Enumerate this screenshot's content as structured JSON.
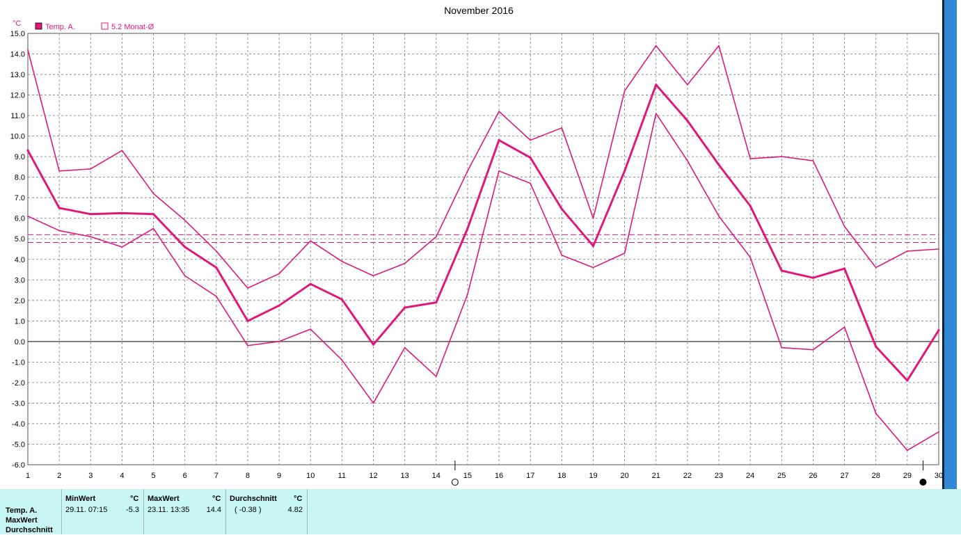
{
  "chart_data": {
    "type": "line",
    "title": "November 2016",
    "ylabel": "°C",
    "ylim": [
      -6.0,
      15.0
    ],
    "ytick_step": 1.0,
    "y_ticks": [
      "15.0",
      "14.0",
      "13.0",
      "12.0",
      "11.0",
      "10.0",
      "9.0",
      "8.0",
      "7.0",
      "6.0",
      "5.0",
      "4.0",
      "3.0",
      "2.0",
      "1.0",
      "0.0",
      "-1.0",
      "-2.0",
      "-3.0",
      "-4.0",
      "-5.0",
      "-6.0"
    ],
    "x": [
      1,
      2,
      3,
      4,
      5,
      6,
      7,
      8,
      9,
      10,
      11,
      12,
      13,
      14,
      15,
      16,
      17,
      18,
      19,
      20,
      21,
      22,
      23,
      24,
      25,
      26,
      27,
      28,
      29,
      30
    ],
    "x_ticks": [
      "1",
      "2",
      "3",
      "4",
      "5",
      "6",
      "7",
      "8",
      "9",
      "10",
      "11",
      "12",
      "13",
      "14",
      "15",
      "16",
      "17",
      "18",
      "19",
      "20",
      "21",
      "22",
      "23",
      "24",
      "25",
      "26",
      "27",
      "28",
      "29",
      "30"
    ],
    "grid": true,
    "legend_placement": "top-left",
    "legend": [
      {
        "label": "Temp. A.",
        "filled": true
      },
      {
        "label": "5.2 Monat-Ø",
        "filled": false
      }
    ],
    "color": "#e0187a",
    "series": [
      {
        "name": "Temp. A.",
        "role": "mean",
        "values": [
          9.3,
          6.5,
          6.2,
          6.25,
          6.2,
          4.6,
          3.6,
          1.0,
          1.75,
          2.8,
          2.05,
          -0.15,
          1.65,
          1.9,
          5.5,
          9.8,
          8.95,
          6.45,
          4.65,
          8.3,
          12.5,
          10.75,
          8.6,
          6.6,
          3.45,
          3.1,
          3.55,
          -0.25,
          -1.9,
          0.55
        ]
      },
      {
        "role": "max",
        "values": [
          14.2,
          8.3,
          8.4,
          9.3,
          7.2,
          5.9,
          4.4,
          2.6,
          3.3,
          4.9,
          3.9,
          3.2,
          3.8,
          5.1,
          8.3,
          11.2,
          9.8,
          10.4,
          6.0,
          12.2,
          14.4,
          12.5,
          14.4,
          8.9,
          9.0,
          8.8,
          5.6,
          3.6,
          4.4,
          4.5
        ]
      },
      {
        "role": "min",
        "values": [
          6.1,
          5.4,
          5.1,
          4.6,
          5.5,
          3.2,
          2.2,
          -0.2,
          0.0,
          0.6,
          -0.9,
          -3.0,
          -0.3,
          -1.7,
          2.3,
          8.3,
          7.7,
          4.2,
          3.6,
          4.3,
          11.1,
          8.8,
          6.1,
          4.1,
          -0.3,
          -0.4,
          0.7,
          -3.5,
          -5.3,
          -4.4
        ]
      }
    ],
    "reference_lines": [
      5.2,
      4.82
    ],
    "moon_markers": [
      {
        "x": 14.6,
        "phase": "full-moon"
      },
      {
        "x": 29.5,
        "phase": "new-moon"
      }
    ]
  },
  "stats": {
    "row_labels": [
      "Temp. A.",
      "MaxWert",
      "Durchschnitt"
    ],
    "min": {
      "header": "MinWert",
      "unit": "°C",
      "datetime": "29.11.  07:15",
      "value": "-5.3"
    },
    "max": {
      "header": "MaxWert",
      "unit": "°C",
      "datetime": "23.11.  13:35",
      "value": "14.4"
    },
    "avg": {
      "header": "Durchschnitt",
      "unit": "°C",
      "note": "( -0.38 )",
      "value": "4.82"
    }
  }
}
